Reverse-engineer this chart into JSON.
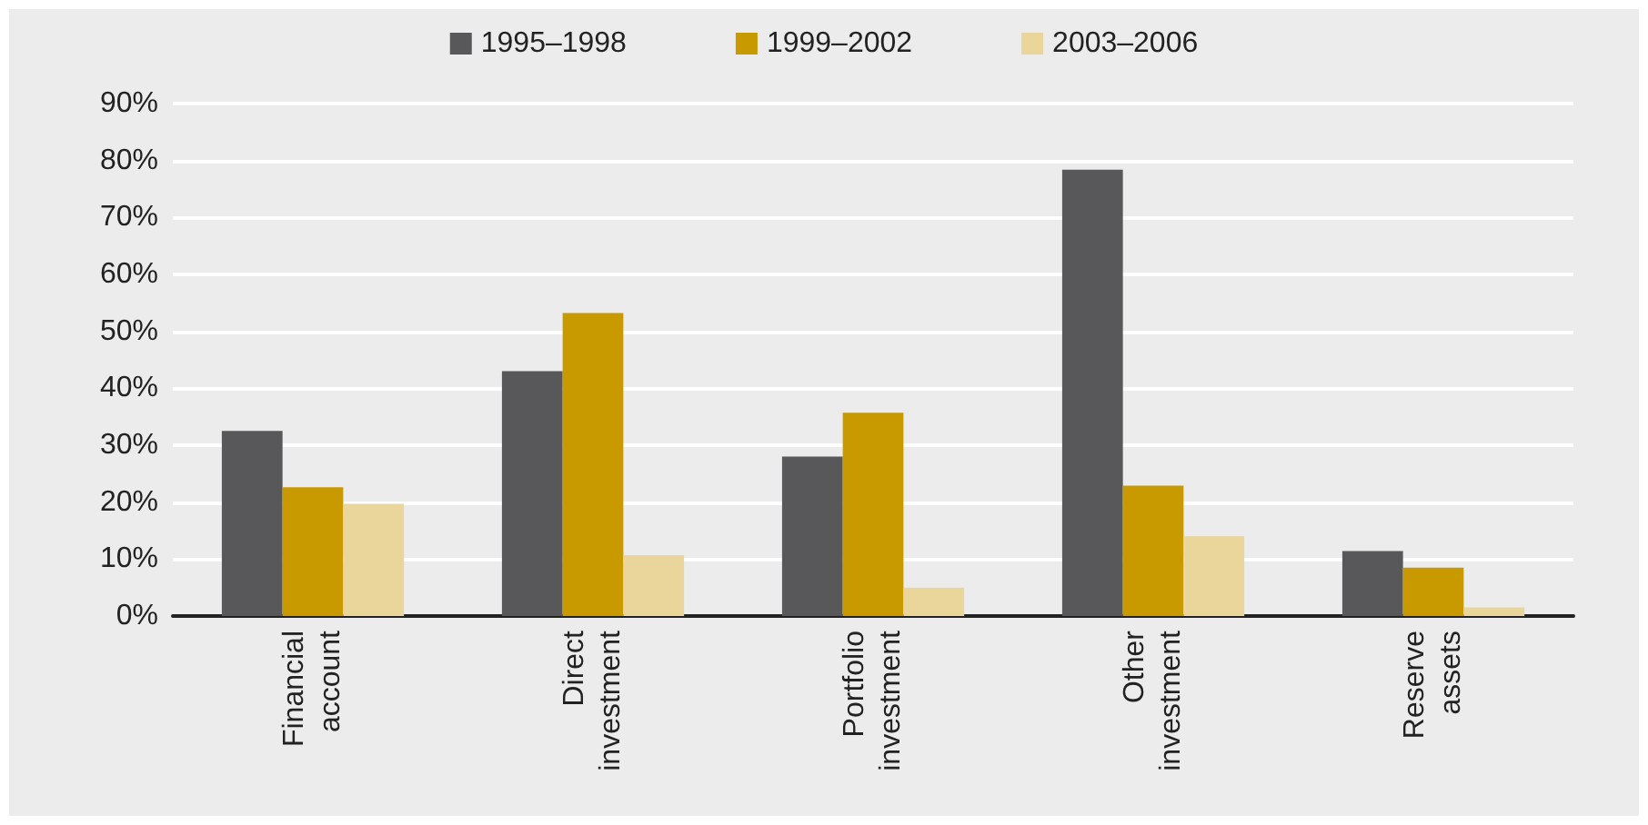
{
  "chart_data": {
    "type": "bar",
    "categories": [
      "Financial\naccount",
      "Direct\ninvestment",
      "Portfolio\ninvestment",
      "Other\ninvestment",
      "Reserve\nassets"
    ],
    "series": [
      {
        "name": "1995–1998",
        "color": "#58585a",
        "values": [
          32.5,
          43,
          28,
          78.4,
          11.4
        ]
      },
      {
        "name": "1999–2002",
        "color": "#c99a00",
        "values": [
          22.6,
          53.2,
          35.7,
          22.9,
          8.5
        ]
      },
      {
        "name": "2003–2006",
        "color": "#ead69a",
        "values": [
          19.7,
          10.7,
          5,
          14,
          1.5
        ]
      }
    ],
    "ylim": [
      0,
      90
    ],
    "yticks": [
      {
        "value": 0,
        "label": "0%"
      },
      {
        "value": 10,
        "label": "10%"
      },
      {
        "value": 20,
        "label": "20%"
      },
      {
        "value": 30,
        "label": "30%"
      },
      {
        "value": 40,
        "label": "40%"
      },
      {
        "value": 50,
        "label": "50%"
      },
      {
        "value": 60,
        "label": "60%"
      },
      {
        "value": 70,
        "label": "70%"
      },
      {
        "value": 80,
        "label": "80%"
      },
      {
        "value": 90,
        "label": "90%"
      }
    ],
    "grid": "y",
    "legend": "top"
  }
}
